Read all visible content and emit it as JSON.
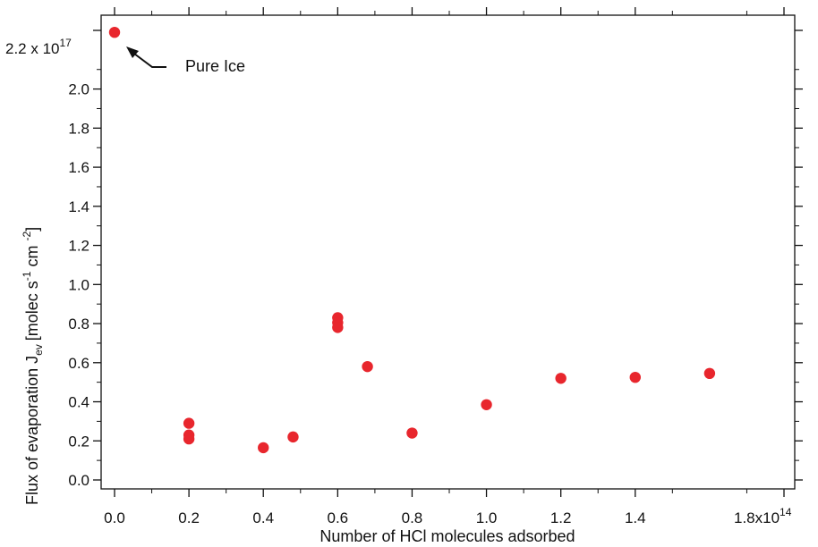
{
  "chart_data": {
    "type": "scatter",
    "xlabel": "Number of HCl molecules adsorbed",
    "ylabel_main": "Flux of evaporation J",
    "ylabel_sub": "ev",
    "ylabel_units": "[molec s",
    "ylabel_units_exp1": "-1",
    "ylabel_units_mid": " cm ",
    "ylabel_units_exp2": "-2",
    "ylabel_units_end": "]",
    "xlim": [
      0.0,
      1.8
    ],
    "ylim": [
      0.0,
      2.3
    ],
    "x_ticks": [
      {
        "value": 0.0,
        "label": "0.0"
      },
      {
        "value": 0.2,
        "label": "0.2"
      },
      {
        "value": 0.4,
        "label": "0.4"
      },
      {
        "value": 0.6,
        "label": "0.6"
      },
      {
        "value": 0.8,
        "label": "0.8"
      },
      {
        "value": 1.0,
        "label": "1.0"
      },
      {
        "value": 1.2,
        "label": "1.2"
      },
      {
        "value": 1.4,
        "label": "1.4"
      }
    ],
    "x_scale_label": {
      "base": "1.8x10",
      "exp": "14"
    },
    "y_ticks": [
      {
        "value": 0.0,
        "label": "0.0"
      },
      {
        "value": 0.2,
        "label": "0.2"
      },
      {
        "value": 0.4,
        "label": "0.4"
      },
      {
        "value": 0.6,
        "label": "0.6"
      },
      {
        "value": 0.8,
        "label": "0.8"
      },
      {
        "value": 1.0,
        "label": "1.0"
      },
      {
        "value": 1.2,
        "label": "1.2"
      },
      {
        "value": 1.4,
        "label": "1.4"
      },
      {
        "value": 1.6,
        "label": "1.6"
      },
      {
        "value": 1.8,
        "label": "1.8"
      },
      {
        "value": 2.0,
        "label": "2.0"
      }
    ],
    "y_scale_label": {
      "base": "2.2 x 10",
      "exp": "17"
    },
    "points": [
      {
        "x": 0.0,
        "y": 2.29
      },
      {
        "x": 0.2,
        "y": 0.29
      },
      {
        "x": 0.2,
        "y": 0.23
      },
      {
        "x": 0.2,
        "y": 0.21
      },
      {
        "x": 0.4,
        "y": 0.165
      },
      {
        "x": 0.48,
        "y": 0.22
      },
      {
        "x": 0.6,
        "y": 0.83
      },
      {
        "x": 0.6,
        "y": 0.805
      },
      {
        "x": 0.6,
        "y": 0.78
      },
      {
        "x": 0.68,
        "y": 0.58
      },
      {
        "x": 0.8,
        "y": 0.24
      },
      {
        "x": 1.0,
        "y": 0.385
      },
      {
        "x": 1.2,
        "y": 0.52
      },
      {
        "x": 1.4,
        "y": 0.525
      },
      {
        "x": 1.6,
        "y": 0.545
      }
    ],
    "annotation": {
      "text": "Pure Ice"
    },
    "marker_color": "#e8262d",
    "axis_color": "#111111",
    "grid": false
  }
}
